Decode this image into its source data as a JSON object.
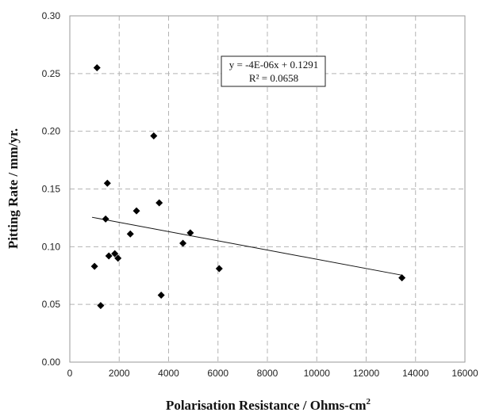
{
  "chart_data": {
    "type": "scatter",
    "xlabel": "Polarisation Resistance / Ohms-cm",
    "xlabel_sup": "2",
    "ylabel": "Pitting Rate / mm/yr.",
    "xlim": [
      0,
      16000
    ],
    "ylim": [
      0,
      0.3
    ],
    "x_ticks": [
      0,
      2000,
      4000,
      6000,
      8000,
      10000,
      12000,
      14000,
      16000
    ],
    "y_ticks": [
      0.0,
      0.05,
      0.1,
      0.15,
      0.2,
      0.25,
      0.3
    ],
    "x_tick_labels": [
      "0",
      "2000",
      "4000",
      "6000",
      "8000",
      "10000",
      "12000",
      "14000",
      "16000"
    ],
    "y_tick_labels": [
      "0.00",
      "0.05",
      "0.10",
      "0.15",
      "0.20",
      "0.25",
      "0.30"
    ],
    "grid": true,
    "marker": "diamond",
    "points": [
      {
        "x": 1000,
        "y": 0.083
      },
      {
        "x": 1100,
        "y": 0.255
      },
      {
        "x": 1250,
        "y": 0.049
      },
      {
        "x": 1450,
        "y": 0.124
      },
      {
        "x": 1520,
        "y": 0.155
      },
      {
        "x": 1580,
        "y": 0.092
      },
      {
        "x": 1820,
        "y": 0.094
      },
      {
        "x": 1950,
        "y": 0.09
      },
      {
        "x": 2450,
        "y": 0.111
      },
      {
        "x": 2700,
        "y": 0.131
      },
      {
        "x": 3400,
        "y": 0.196
      },
      {
        "x": 3620,
        "y": 0.138
      },
      {
        "x": 3700,
        "y": 0.058
      },
      {
        "x": 4580,
        "y": 0.103
      },
      {
        "x": 4880,
        "y": 0.112
      },
      {
        "x": 6050,
        "y": 0.081
      },
      {
        "x": 13450,
        "y": 0.073
      }
    ],
    "trendline": {
      "slope": -4e-06,
      "intercept": 0.1291,
      "x_range": [
        900,
        13450
      ],
      "equation": "y = -4E-06x + 0.1291",
      "r_squared": "R² = 0.0658"
    }
  }
}
